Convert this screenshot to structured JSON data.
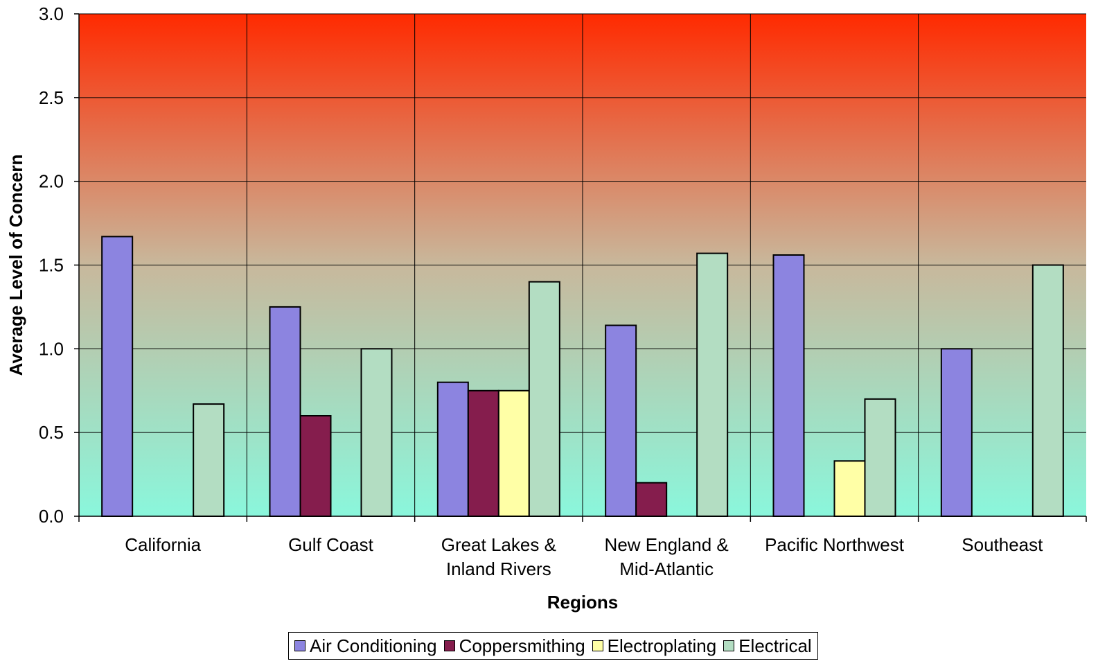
{
  "chart_data": {
    "type": "bar",
    "xlabel": "Regions",
    "ylabel": "Average Level of Concern",
    "ylim": [
      0,
      3
    ],
    "yticks": [
      "0.0",
      "0.5",
      "1.0",
      "1.5",
      "2.0",
      "2.5",
      "3.0"
    ],
    "grid": true,
    "legend_position": "bottom",
    "categories": [
      [
        "California"
      ],
      [
        "Gulf Coast"
      ],
      [
        "Great Lakes &",
        "Inland Rivers"
      ],
      [
        "New England &",
        "Mid-Atlantic"
      ],
      [
        "Pacific Northwest"
      ],
      [
        "Southeast"
      ]
    ],
    "series": [
      {
        "name": "Air Conditioning",
        "color": "#8c84e0",
        "values": [
          1.67,
          1.25,
          0.8,
          1.14,
          1.56,
          1.0
        ]
      },
      {
        "name": "Coppersmithing",
        "color": "#851d4d",
        "values": [
          0,
          0.6,
          0.75,
          0.2,
          0,
          0
        ]
      },
      {
        "name": "Electroplating",
        "color": "#ffffa6",
        "values": [
          0,
          0,
          0.75,
          0,
          0.33,
          0
        ]
      },
      {
        "name": "Electrical",
        "color": "#b3ddc2",
        "values": [
          0.67,
          1.0,
          1.4,
          1.57,
          0.7,
          1.5
        ]
      }
    ],
    "background_gradient": {
      "top": "#ff2a00",
      "middle": "#c8b89c",
      "bottom": "#8af7dc"
    }
  }
}
